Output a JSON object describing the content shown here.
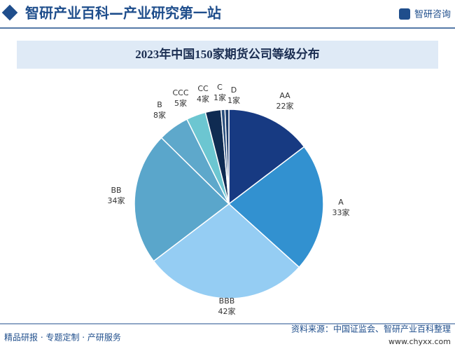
{
  "header": {
    "title": "智研产业百科—产业研究第一站",
    "brand": "智研咨询"
  },
  "chart_data": {
    "type": "pie",
    "title": "2023年中国150家期货公司等级分布",
    "categories": [
      "AA",
      "A",
      "BBB",
      "BB",
      "B",
      "CCC",
      "CC",
      "C",
      "D"
    ],
    "values": [
      22,
      33,
      42,
      34,
      8,
      5,
      4,
      1,
      1
    ],
    "value_labels": [
      "22家",
      "33家",
      "42家",
      "34家",
      "8家",
      "5家",
      "4家",
      "1家",
      "1家"
    ],
    "colors": [
      "#173a82",
      "#3291d0",
      "#95cdf3",
      "#5aa6cb",
      "#5ea8cb",
      "#6cc6d1",
      "#0f2b52",
      "#2b4f7d",
      "#1b3c6c"
    ]
  },
  "footer": {
    "left": "精品研报 · 专题定制 · 产研服务",
    "source": "资料来源：中国证监会、智研产业百科整理",
    "url": "www.chyxx.com"
  }
}
